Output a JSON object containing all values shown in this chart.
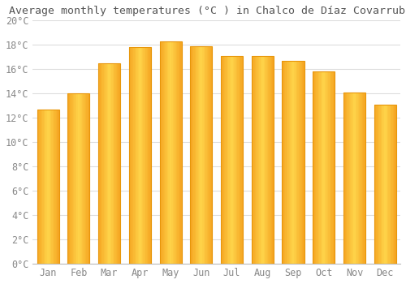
{
  "title": "Average monthly temperatures (°C ) in Chalco de Díaz Covarrubias",
  "months": [
    "Jan",
    "Feb",
    "Mar",
    "Apr",
    "May",
    "Jun",
    "Jul",
    "Aug",
    "Sep",
    "Oct",
    "Nov",
    "Dec"
  ],
  "values": [
    12.7,
    14.0,
    16.5,
    17.8,
    18.3,
    17.9,
    17.1,
    17.1,
    16.7,
    15.8,
    14.1,
    13.1
  ],
  "bar_color_left": "#F5A623",
  "bar_color_center": "#FFD44A",
  "bar_color_right": "#F5A623",
  "bar_edge_color": "#E8960A",
  "background_color": "#FFFFFF",
  "grid_color": "#DDDDDD",
  "tick_label_color": "#888888",
  "title_color": "#555555",
  "ylim": [
    0,
    20
  ],
  "ytick_step": 2,
  "title_fontsize": 9.5,
  "tick_fontsize": 8.5
}
